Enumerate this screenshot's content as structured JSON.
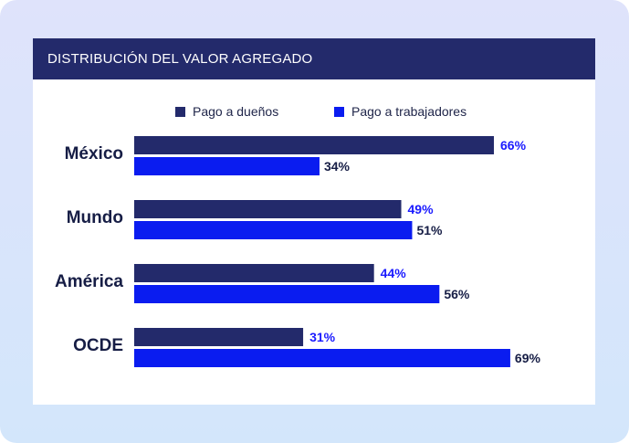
{
  "chart_data": {
    "type": "bar",
    "orientation": "horizontal",
    "title": "DISTRIBUCIÓN DEL VALOR AGREGADO",
    "categories": [
      "México",
      "Mundo",
      "América",
      "OCDE"
    ],
    "series": [
      {
        "name": "Pago a dueños",
        "values": [
          66,
          49,
          44,
          31
        ],
        "labels": [
          "66%",
          "49%",
          "44%",
          "31%"
        ],
        "color": "#232a6b",
        "label_color": "#1a1aff"
      },
      {
        "name": "Pago a trabajadores",
        "values": [
          34,
          51,
          56,
          69
        ],
        "labels": [
          "34%",
          "51%",
          "56%",
          "69%"
        ],
        "color": "#0a1cf0",
        "label_color": "#161d45"
      }
    ],
    "xlim": [
      0,
      100
    ],
    "legend_position": "top",
    "grid": false
  },
  "colors": {
    "title_bar": "#232a6b",
    "card": "#ffffff",
    "frame": "#dbe5fb"
  }
}
